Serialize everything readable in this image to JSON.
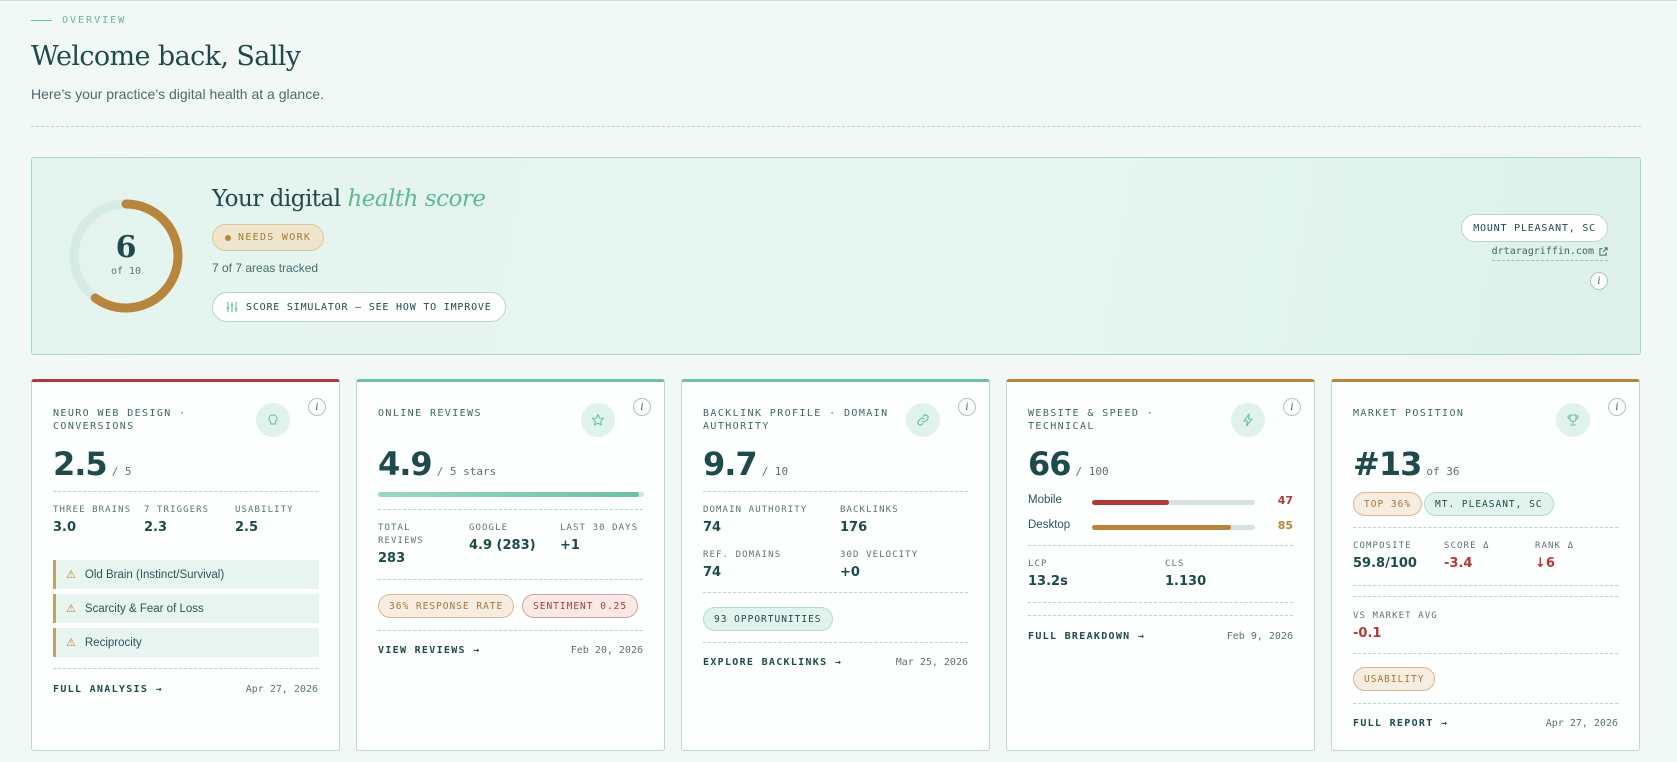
{
  "header": {
    "eyebrow": "OVERVIEW",
    "title": "Welcome back, Sally",
    "subtitle": "Here’s your practice’s digital health at a glance."
  },
  "hero": {
    "score": "6",
    "score_value": 6,
    "score_max": 10,
    "score_of": "of 10",
    "title_plain": "Your digital",
    "title_accent": "health score",
    "status": "NEEDS WORK",
    "areas": "7 of 7 areas tracked",
    "simulator": "SCORE SIMULATOR — SEE HOW TO IMPROVE",
    "location": "MOUNT PLEASANT, SC",
    "website": "drtaragriffin.com",
    "ring_color": "#b7853b",
    "info": "i"
  },
  "cards": {
    "neuro": {
      "title": "NEURO WEB DESIGN · CONVERSIONS",
      "score": "2.5",
      "of": "/ 5",
      "icon": "brain-icon",
      "accent": "#b13a36",
      "stats": [
        {
          "label": "THREE BRAINS",
          "value": "3.0"
        },
        {
          "label": "7 TRIGGERS",
          "value": "2.3"
        },
        {
          "label": "USABILITY",
          "value": "2.5"
        }
      ],
      "triggers": [
        "Old Brain (Instinct/Survival)",
        "Scarcity & Fear of Loss",
        "Reciprocity"
      ],
      "link": "FULL ANALYSIS →",
      "date": "Apr 27, 2026"
    },
    "reviews": {
      "title": "ONLINE REVIEWS",
      "score": "4.9",
      "of": "/ 5 stars",
      "rating_fraction": 0.98,
      "icon": "star-icon",
      "accent": "#6ec0a4",
      "stats": [
        {
          "label": "TOTAL REVIEWS",
          "value": "283"
        },
        {
          "label": "GOOGLE",
          "value": "4.9 (283)"
        },
        {
          "label": "LAST 30 DAYS",
          "value": "+1"
        }
      ],
      "pills": [
        "36% RESPONSE RATE",
        "SENTIMENT 0.25"
      ],
      "link": "VIEW REVIEWS →",
      "date": "Feb 20, 2026"
    },
    "backlinks": {
      "title": "BACKLINK PROFILE · DOMAIN AUTHORITY",
      "score": "9.7",
      "of": "/ 10",
      "icon": "link-icon",
      "accent": "#6ec0a4",
      "stats": [
        {
          "label": "DOMAIN AUTHORITY",
          "value": "74"
        },
        {
          "label": "BACKLINKS",
          "value": "176"
        },
        {
          "label": "REF. DOMAINS",
          "value": "74"
        },
        {
          "label": "30D VELOCITY",
          "value": "+0"
        }
      ],
      "pill": "93 OPPORTUNITIES",
      "link": "EXPLORE BACKLINKS →",
      "date": "Mar 25, 2026"
    },
    "speed": {
      "title": "WEBSITE & SPEED · TECHNICAL",
      "score": "66",
      "of": "/ 100",
      "icon": "bolt-icon",
      "accent": "#b7853b",
      "mobile_label": "Mobile",
      "mobile_value": "47",
      "mobile_pct": 47,
      "mobile_color": "#b13a36",
      "desktop_label": "Desktop",
      "desktop_value": "85",
      "desktop_pct": 85,
      "desktop_color": "#b7853b",
      "stats": [
        {
          "label": "LCP",
          "value": "13.2s"
        },
        {
          "label": "CLS",
          "value": "1.130"
        }
      ],
      "link": "FULL BREAKDOWN →",
      "date": "Feb 9, 2026"
    },
    "market": {
      "title": "MARKET POSITION",
      "score": "#13",
      "of": "of 36",
      "icon": "trophy-icon",
      "accent": "#b7853b",
      "pills": [
        "TOP 36%",
        "MT. PLEASANT, SC"
      ],
      "stats": [
        {
          "label": "COMPOSITE",
          "value": "59.8/100"
        },
        {
          "label": "SCORE Δ",
          "value": "-3.4"
        },
        {
          "label": "RANK Δ",
          "value": "↓6"
        }
      ],
      "vs_label": "VS MARKET AVG",
      "vs_value": "-0.1",
      "tag": "USABILITY",
      "link": "FULL REPORT →",
      "date": "Apr 27, 2026"
    }
  }
}
